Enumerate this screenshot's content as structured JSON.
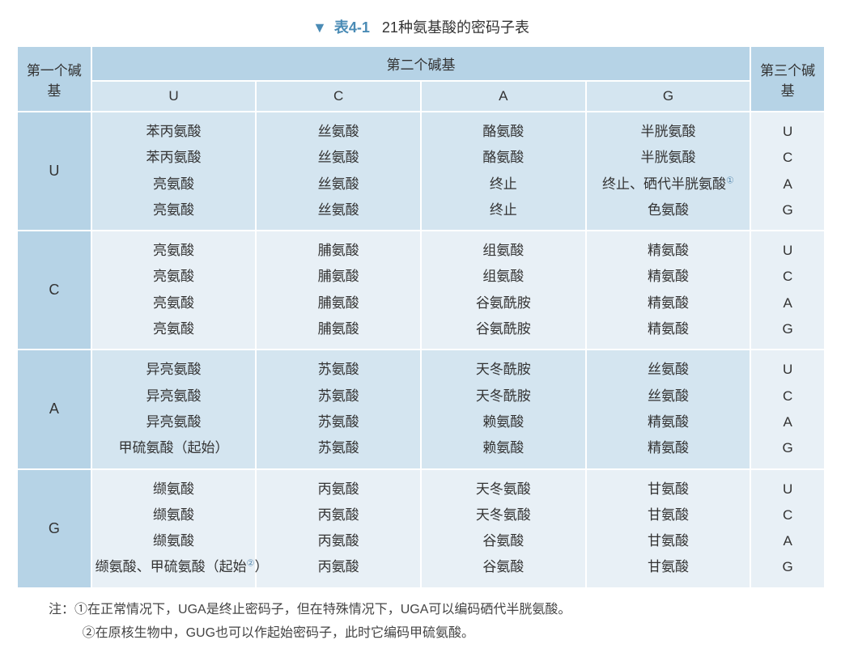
{
  "caption": {
    "marker": "▼",
    "table_num": "表4-1",
    "title": "21种氨基酸的密码子表"
  },
  "headers": {
    "first": "第一个碱基",
    "second": "第二个碱基",
    "third": "第三个碱基",
    "U": "U",
    "C": "C",
    "A": "A",
    "G": "G"
  },
  "third_labels": [
    "U",
    "C",
    "A",
    "G"
  ],
  "rows": [
    {
      "first": "U",
      "U": [
        "苯丙氨酸",
        "苯丙氨酸",
        "亮氨酸",
        "亮氨酸"
      ],
      "C": [
        "丝氨酸",
        "丝氨酸",
        "丝氨酸",
        "丝氨酸"
      ],
      "A": [
        "酪氨酸",
        "酪氨酸",
        "终止",
        "终止"
      ],
      "G": [
        "半胱氨酸",
        "半胱氨酸",
        "终止、硒代半胱氨酸①",
        "色氨酸"
      ]
    },
    {
      "first": "C",
      "U": [
        "亮氨酸",
        "亮氨酸",
        "亮氨酸",
        "亮氨酸"
      ],
      "C": [
        "脯氨酸",
        "脯氨酸",
        "脯氨酸",
        "脯氨酸"
      ],
      "A": [
        "组氨酸",
        "组氨酸",
        "谷氨酰胺",
        "谷氨酰胺"
      ],
      "G": [
        "精氨酸",
        "精氨酸",
        "精氨酸",
        "精氨酸"
      ]
    },
    {
      "first": "A",
      "U": [
        "异亮氨酸",
        "异亮氨酸",
        "异亮氨酸",
        "甲硫氨酸（起始）"
      ],
      "C": [
        "苏氨酸",
        "苏氨酸",
        "苏氨酸",
        "苏氨酸"
      ],
      "A": [
        "天冬酰胺",
        "天冬酰胺",
        "赖氨酸",
        "赖氨酸"
      ],
      "G": [
        "丝氨酸",
        "丝氨酸",
        "精氨酸",
        "精氨酸"
      ]
    },
    {
      "first": "G",
      "U": [
        "缬氨酸",
        "缬氨酸",
        "缬氨酸",
        "缬氨酸、甲硫氨酸（起始②）"
      ],
      "C": [
        "丙氨酸",
        "丙氨酸",
        "丙氨酸",
        "丙氨酸"
      ],
      "A": [
        "天冬氨酸",
        "天冬氨酸",
        "谷氨酸",
        "谷氨酸"
      ],
      "G": [
        "甘氨酸",
        "甘氨酸",
        "甘氨酸",
        "甘氨酸"
      ]
    }
  ],
  "notes": {
    "prefix": "注：",
    "n1": "①在正常情况下，UGA是终止密码子，但在特殊情况下，UGA可以编码硒代半胱氨酸。",
    "n2": "②在原核生物中，GUG也可以作起始密码子，此时它编码甲硫氨酸。"
  },
  "style": {
    "header_dark": "#b6d3e6",
    "header_light": "#d4e5f0",
    "row_odd": "#d4e5f0",
    "row_even": "#e8f0f6",
    "border": "#ffffff",
    "text": "#333333",
    "accent": "#4a8bb5",
    "font_size_body": 17,
    "font_size_caption": 18
  }
}
